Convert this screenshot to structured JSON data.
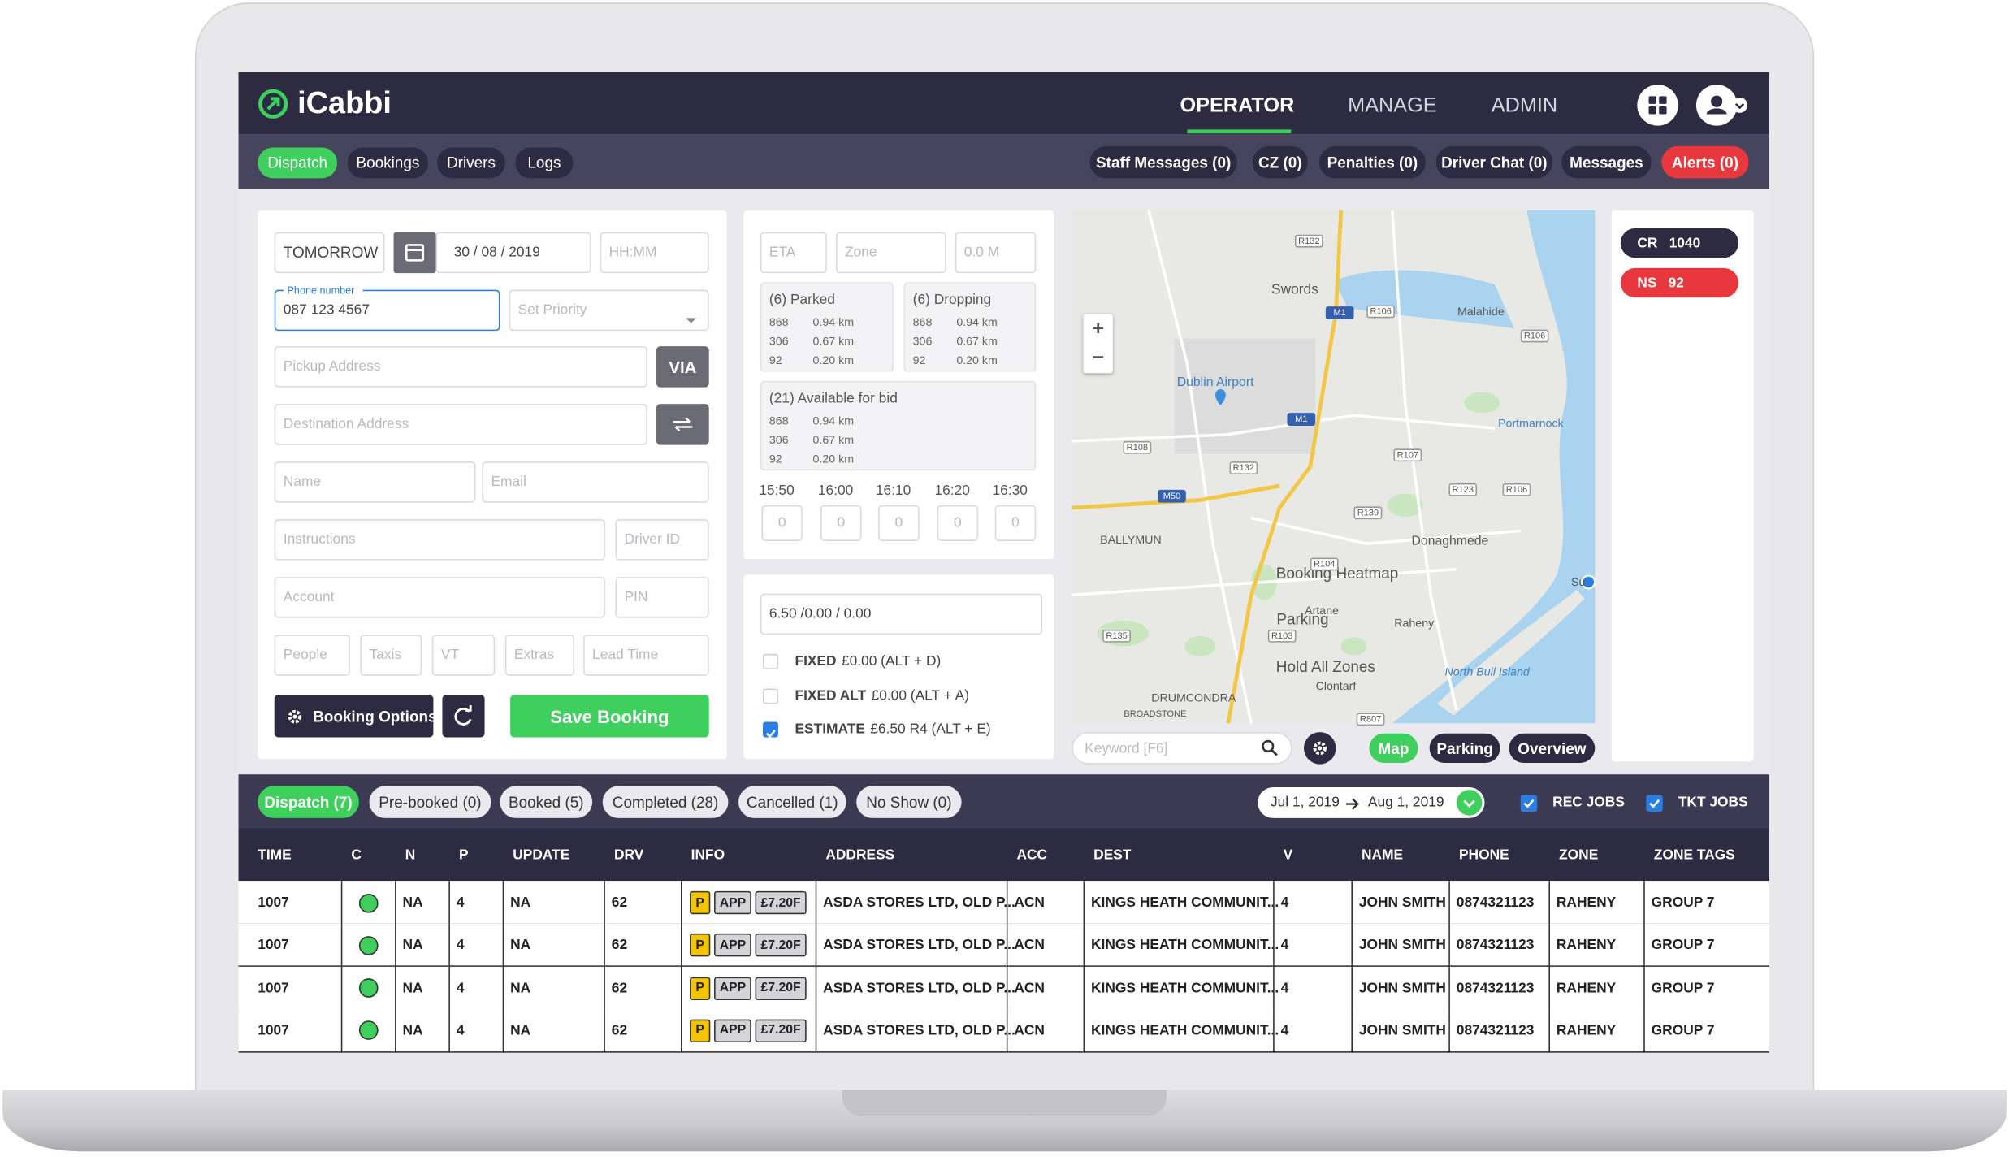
{
  "header": {
    "logo": "iCabbi",
    "nav": [
      "OPERATOR",
      "MANAGE",
      "ADMIN"
    ]
  },
  "toolbar": {
    "tabs": [
      "Dispatch",
      "Bookings",
      "Drivers",
      "Logs"
    ],
    "buttons": [
      "Staff Messages (0)",
      "CZ (0)",
      "Penalties (0)",
      "Driver Chat (0)",
      "Messages",
      "Alerts (0)"
    ]
  },
  "booking_form": {
    "day": "TOMORROW",
    "date": "30 / 08 / 2019",
    "time": "HH:MM",
    "phone_label": "Phone number",
    "phone": "087 123 4567",
    "priority": "Set Priority",
    "pickup": "Pickup Address",
    "via": "VIA",
    "destination": "Destination Address",
    "name": "Name",
    "email": "Email",
    "instructions": "Instructions",
    "driver_id": "Driver ID",
    "account": "Account",
    "pin": "PIN",
    "small_fields": [
      "People",
      "Taxis",
      "VT",
      "Extras",
      "Lead Time"
    ],
    "options_button": "Booking Options",
    "save_button": "Save Booking"
  },
  "availability": {
    "fields": [
      "ETA",
      "Zone",
      "0.0 M"
    ],
    "groups": [
      {
        "title": "(6) Parked",
        "rows": [
          [
            "868",
            "0.94 km"
          ],
          [
            "306",
            "0.67 km"
          ],
          [
            "92",
            "0.20 km"
          ]
        ]
      },
      {
        "title": "(6) Dropping",
        "rows": [
          [
            "868",
            "0.94 km"
          ],
          [
            "306",
            "0.67 km"
          ],
          [
            "92",
            "0.20 km"
          ]
        ]
      },
      {
        "title": "(21) Available for bid",
        "rows": [
          [
            "868",
            "0.94 km"
          ],
          [
            "306",
            "0.67 km"
          ],
          [
            "92",
            "0.20 km"
          ]
        ]
      }
    ],
    "times": [
      "15:50",
      "16:00",
      "16:10",
      "16:20",
      "16:30"
    ],
    "time_counts": [
      "0",
      "0",
      "0",
      "0",
      "0"
    ]
  },
  "pricing": {
    "price": "6.50 /0.00 / 0.00",
    "options": [
      {
        "label": "FIXED",
        "detail": "£0.00 (ALT + D)",
        "checked": false
      },
      {
        "label": "FIXED ALT",
        "detail": "£0.00 (ALT + A)",
        "checked": false
      },
      {
        "label": "ESTIMATE",
        "detail": "£6.50 R4 (ALT + E)",
        "checked": true
      }
    ]
  },
  "map": {
    "zoom_in": "+",
    "zoom_out": "−",
    "labels": [
      "Swords",
      "Malahide",
      "Dublin Airport",
      "Portmarnock",
      "BALLYMUN",
      "Donaghmede",
      "Booking Heatmap",
      "Artane",
      "Parking",
      "Raheny",
      "Hold All Zones",
      "Clontarf",
      "North Bull Island",
      "DRUMCONDRA",
      "BROADSTONE",
      "Su"
    ],
    "roads": [
      "R132",
      "M1",
      "R106",
      "R106",
      "M1",
      "R108",
      "R107",
      "R132",
      "M50",
      "R123",
      "R106",
      "R139",
      "R104",
      "R103",
      "R135",
      "R807"
    ],
    "search": "Keyword [F6]",
    "views": [
      "Map",
      "Parking",
      "Overview"
    ]
  },
  "side": [
    {
      "code": "CR",
      "value": "1040",
      "color": "#2d2b42"
    },
    {
      "code": "NS",
      "value": "92",
      "color": "#e8383d"
    }
  ],
  "jobs": {
    "tabs": [
      "Dispatch (7)",
      "Pre-booked (0)",
      "Booked (5)",
      "Completed (28)",
      "Cancelled (1)",
      "No Show (0)"
    ],
    "date_from": "Jul 1, 2019",
    "date_to": "Aug 1, 2019",
    "filters": [
      {
        "label": "REC JOBS",
        "checked": true
      },
      {
        "label": "TKT JOBS",
        "checked": true
      }
    ],
    "columns": [
      "TIME",
      "C",
      "N",
      "P",
      "UPDATE",
      "DRV",
      "INFO",
      "ADDRESS",
      "ACC",
      "DEST",
      "V",
      "NAME",
      "PHONE",
      "ZONE",
      "ZONE TAGS"
    ],
    "rows": [
      {
        "time": "1007",
        "status_color": "#3ecf5c",
        "n": "NA",
        "p": "4",
        "update": "NA",
        "drv": "62",
        "info": [
          "P",
          "APP",
          "£7.20F"
        ],
        "address": "ASDA STORES LTD, OLD P...",
        "acc": "ACN",
        "dest": "KINGS HEATH COMMUNIT...",
        "v": "4",
        "name": "JOHN SMITH",
        "phone": "0874321123",
        "zone": "RAHENY",
        "zone_tags": "GROUP 7"
      },
      {
        "time": "1007",
        "status_color": "#3ecf5c",
        "n": "NA",
        "p": "4",
        "update": "NA",
        "drv": "62",
        "info": [
          "P",
          "APP",
          "£7.20F"
        ],
        "address": "ASDA STORES LTD, OLD P...",
        "acc": "ACN",
        "dest": "KINGS HEATH COMMUNIT...",
        "v": "4",
        "name": "JOHN SMITH",
        "phone": "0874321123",
        "zone": "RAHENY",
        "zone_tags": "GROUP 7"
      },
      {
        "time": "1007",
        "status_color": "#3ecf5c",
        "n": "NA",
        "p": "4",
        "update": "NA",
        "drv": "62",
        "info": [
          "P",
          "APP",
          "£7.20F"
        ],
        "address": "ASDA STORES LTD, OLD P...",
        "acc": "ACN",
        "dest": "KINGS HEATH COMMUNIT...",
        "v": "4",
        "name": "JOHN SMITH",
        "phone": "0874321123",
        "zone": "RAHENY",
        "zone_tags": "GROUP 7"
      },
      {
        "time": "1007",
        "status_color": "#3ecf5c",
        "n": "NA",
        "p": "4",
        "update": "NA",
        "drv": "62",
        "info": [
          "P",
          "APP",
          "£7.20F"
        ],
        "address": "ASDA STORES LTD, OLD P...",
        "acc": "ACN",
        "dest": "KINGS HEATH COMMUNIT...",
        "v": "4",
        "name": "JOHN SMITH",
        "phone": "0874321123",
        "zone": "RAHENY",
        "zone_tags": "GROUP 7"
      }
    ]
  }
}
